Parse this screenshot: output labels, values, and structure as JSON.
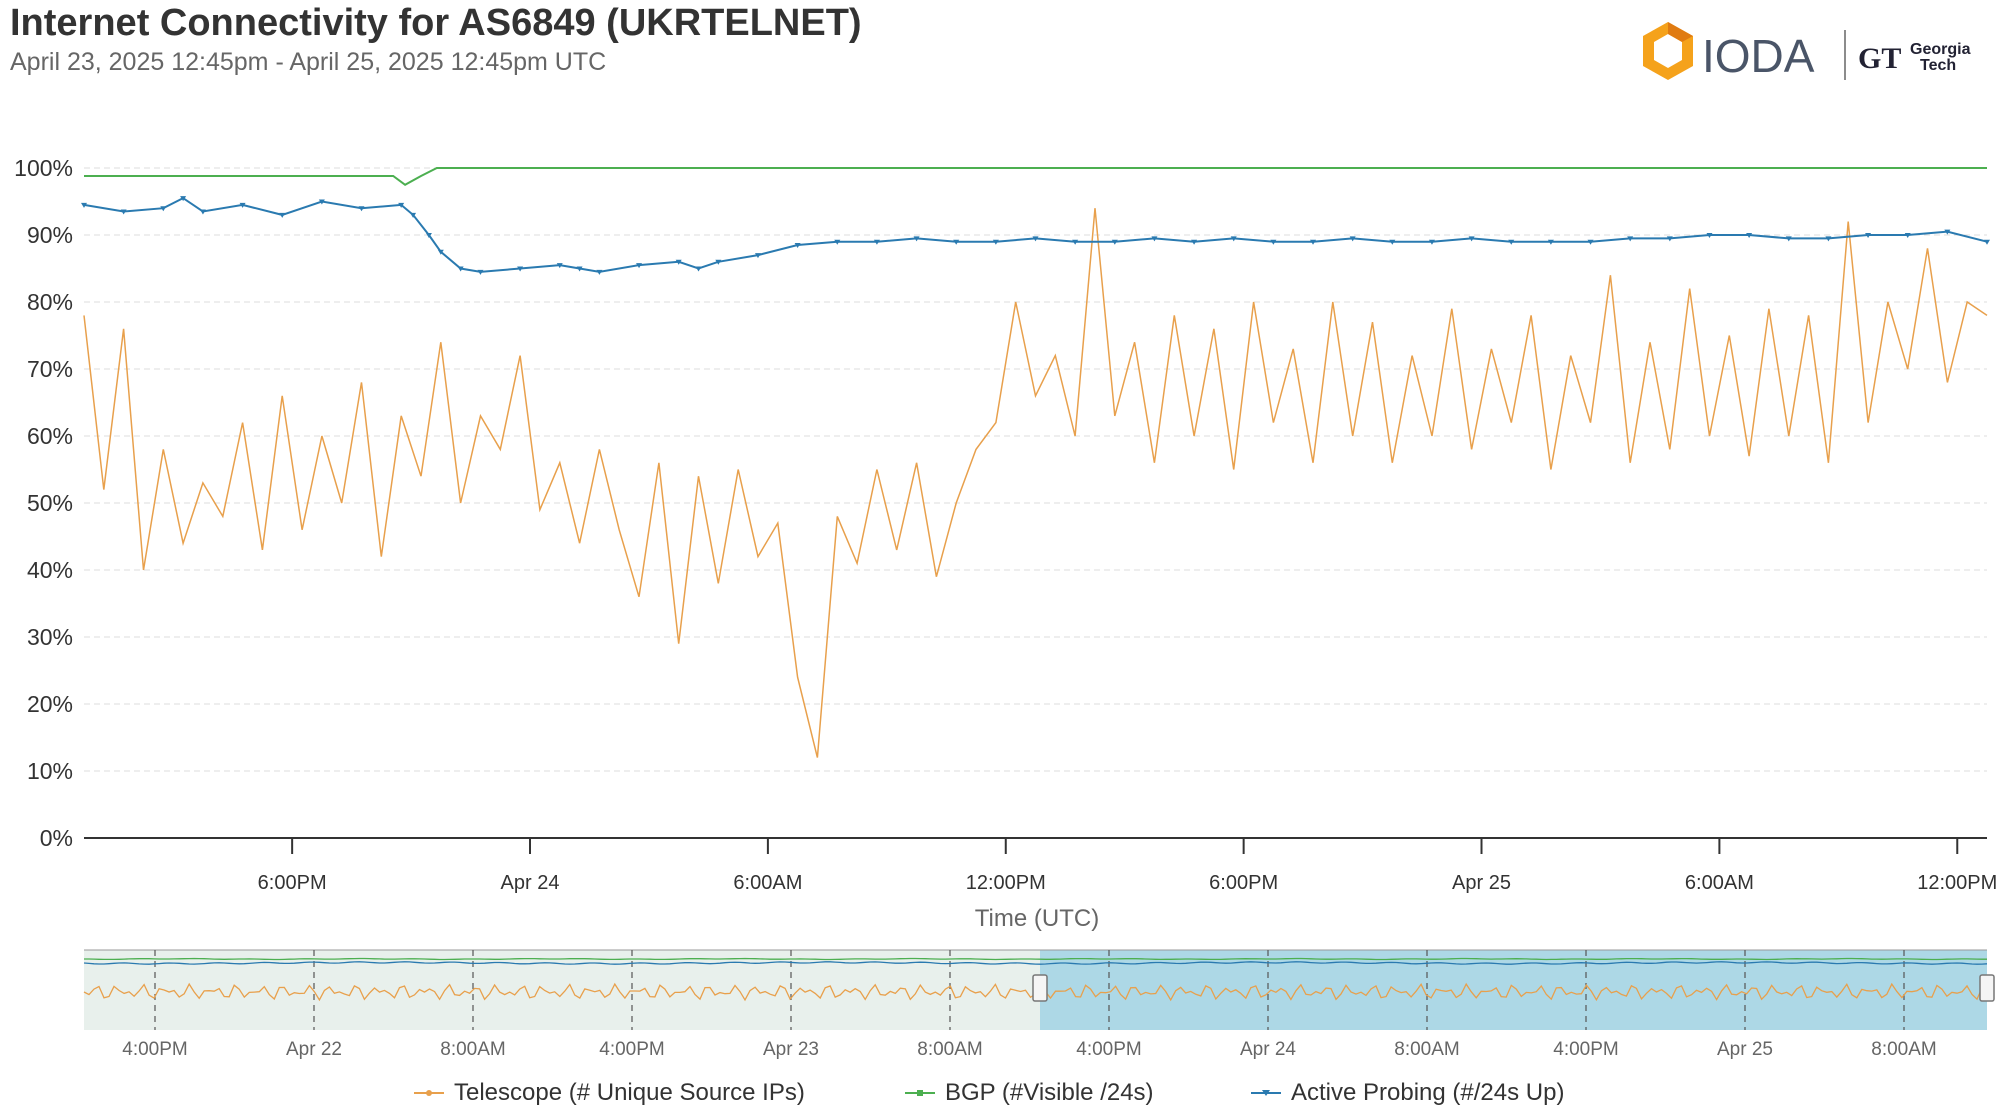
{
  "header": {
    "title": "Internet Connectivity for AS6849 (UKRTELNET)",
    "subtitle": "April 23, 2025 12:45pm - April 25, 2025 12:45pm UTC"
  },
  "branding": {
    "logo_text": "IODA",
    "partner_line1": "Georgia",
    "partner_line2": "Tech"
  },
  "colors": {
    "telescope": "#e8a04c",
    "bgp": "#4caf50",
    "active_probing": "#2a7ab0",
    "navigator_fill": "#add8e6",
    "orange_logo": "#f5a21b"
  },
  "chart_data": {
    "type": "line",
    "xlabel": "Time (UTC)",
    "ylabel": "",
    "ylim": [
      0,
      100
    ],
    "y_ticks": [
      "0%",
      "10%",
      "20%",
      "30%",
      "40%",
      "50%",
      "60%",
      "70%",
      "80%",
      "90%",
      "100%"
    ],
    "x_ticks": [
      "6:00PM",
      "Apr 24",
      "6:00AM",
      "12:00PM",
      "6:00PM",
      "Apr 25",
      "6:00AM",
      "12:00PM"
    ],
    "x_range_hours": [
      0,
      48
    ],
    "x_tick_hours": [
      5.25,
      11.25,
      17.25,
      23.25,
      29.25,
      35.25,
      41.25,
      47.25
    ],
    "grid": true,
    "legend": "bottom",
    "series": [
      {
        "name": "Telescope (# Unique Source IPs)",
        "key": "telescope",
        "points": [
          [
            0,
            78
          ],
          [
            0.5,
            52
          ],
          [
            1,
            76
          ],
          [
            1.5,
            40
          ],
          [
            2,
            58
          ],
          [
            2.5,
            44
          ],
          [
            3,
            53
          ],
          [
            3.5,
            48
          ],
          [
            4,
            62
          ],
          [
            4.5,
            43
          ],
          [
            5,
            66
          ],
          [
            5.5,
            46
          ],
          [
            6,
            60
          ],
          [
            6.5,
            50
          ],
          [
            7,
            68
          ],
          [
            7.5,
            42
          ],
          [
            8,
            63
          ],
          [
            8.5,
            54
          ],
          [
            9,
            74
          ],
          [
            9.5,
            50
          ],
          [
            10,
            63
          ],
          [
            10.5,
            58
          ],
          [
            11,
            72
          ],
          [
            11.5,
            49
          ],
          [
            12,
            56
          ],
          [
            12.5,
            44
          ],
          [
            13,
            58
          ],
          [
            13.5,
            46
          ],
          [
            14,
            36
          ],
          [
            14.5,
            56
          ],
          [
            15,
            29
          ],
          [
            15.5,
            54
          ],
          [
            16,
            38
          ],
          [
            16.5,
            55
          ],
          [
            17,
            42
          ],
          [
            17.5,
            47
          ],
          [
            18,
            24
          ],
          [
            18.5,
            12
          ],
          [
            19,
            48
          ],
          [
            19.5,
            41
          ],
          [
            20,
            55
          ],
          [
            20.5,
            43
          ],
          [
            21,
            56
          ],
          [
            21.5,
            39
          ],
          [
            22,
            50
          ],
          [
            22.5,
            58
          ],
          [
            23,
            62
          ],
          [
            23.5,
            80
          ],
          [
            24,
            66
          ],
          [
            24.5,
            72
          ],
          [
            25,
            60
          ],
          [
            25.5,
            94
          ],
          [
            26,
            63
          ],
          [
            26.5,
            74
          ],
          [
            27,
            56
          ],
          [
            27.5,
            78
          ],
          [
            28,
            60
          ],
          [
            28.5,
            76
          ],
          [
            29,
            55
          ],
          [
            29.5,
            80
          ],
          [
            30,
            62
          ],
          [
            30.5,
            73
          ],
          [
            31,
            56
          ],
          [
            31.5,
            80
          ],
          [
            32,
            60
          ],
          [
            32.5,
            77
          ],
          [
            33,
            56
          ],
          [
            33.5,
            72
          ],
          [
            34,
            60
          ],
          [
            34.5,
            79
          ],
          [
            35,
            58
          ],
          [
            35.5,
            73
          ],
          [
            36,
            62
          ],
          [
            36.5,
            78
          ],
          [
            37,
            55
          ],
          [
            37.5,
            72
          ],
          [
            38,
            62
          ],
          [
            38.5,
            84
          ],
          [
            39,
            56
          ],
          [
            39.5,
            74
          ],
          [
            40,
            58
          ],
          [
            40.5,
            82
          ],
          [
            41,
            60
          ],
          [
            41.5,
            75
          ],
          [
            42,
            57
          ],
          [
            42.5,
            79
          ],
          [
            43,
            60
          ],
          [
            43.5,
            78
          ],
          [
            44,
            56
          ],
          [
            44.5,
            92
          ],
          [
            45,
            62
          ],
          [
            45.5,
            80
          ],
          [
            46,
            70
          ],
          [
            46.5,
            88
          ],
          [
            47,
            68
          ],
          [
            47.5,
            80
          ],
          [
            48,
            78
          ]
        ]
      },
      {
        "name": "BGP (#Visible /24s)",
        "key": "bgp",
        "points": [
          [
            0,
            98.8
          ],
          [
            5.5,
            98.8
          ],
          [
            7.8,
            98.8
          ],
          [
            8.1,
            97.5
          ],
          [
            8.5,
            98.8
          ],
          [
            8.9,
            100
          ],
          [
            10,
            100
          ],
          [
            20,
            100
          ],
          [
            30,
            100
          ],
          [
            40,
            100
          ],
          [
            48,
            100
          ]
        ]
      },
      {
        "name": "Active Probing (#/24s Up)",
        "key": "active_probing",
        "points": [
          [
            0,
            94.5
          ],
          [
            1,
            93.5
          ],
          [
            2,
            94
          ],
          [
            2.5,
            95.5
          ],
          [
            3,
            93.5
          ],
          [
            4,
            94.5
          ],
          [
            5,
            93
          ],
          [
            6,
            95
          ],
          [
            7,
            94
          ],
          [
            8,
            94.5
          ],
          [
            8.3,
            93
          ],
          [
            8.7,
            90
          ],
          [
            9,
            87.5
          ],
          [
            9.5,
            85
          ],
          [
            10,
            84.5
          ],
          [
            11,
            85
          ],
          [
            12,
            85.5
          ],
          [
            12.5,
            85
          ],
          [
            13,
            84.5
          ],
          [
            14,
            85.5
          ],
          [
            15,
            86
          ],
          [
            15.5,
            85
          ],
          [
            16,
            86
          ],
          [
            17,
            87
          ],
          [
            18,
            88.5
          ],
          [
            19,
            89
          ],
          [
            20,
            89
          ],
          [
            21,
            89.5
          ],
          [
            22,
            89
          ],
          [
            23,
            89
          ],
          [
            24,
            89.5
          ],
          [
            25,
            89
          ],
          [
            26,
            89
          ],
          [
            27,
            89.5
          ],
          [
            28,
            89
          ],
          [
            29,
            89.5
          ],
          [
            30,
            89
          ],
          [
            31,
            89
          ],
          [
            32,
            89.5
          ],
          [
            33,
            89
          ],
          [
            34,
            89
          ],
          [
            35,
            89.5
          ],
          [
            36,
            89
          ],
          [
            37,
            89
          ],
          [
            38,
            89
          ],
          [
            39,
            89.5
          ],
          [
            40,
            89.5
          ],
          [
            41,
            90
          ],
          [
            42,
            90
          ],
          [
            43,
            89.5
          ],
          [
            44,
            89.5
          ],
          [
            45,
            90
          ],
          [
            46,
            90
          ],
          [
            47,
            90.5
          ],
          [
            48,
            89
          ]
        ]
      }
    ]
  },
  "navigator": {
    "x_ticks": [
      "4:00PM",
      "Apr 22",
      "8:00AM",
      "4:00PM",
      "Apr 23",
      "8:00AM",
      "4:00PM",
      "Apr 24",
      "8:00AM",
      "4:00PM",
      "Apr 25",
      "8:00AM"
    ]
  }
}
